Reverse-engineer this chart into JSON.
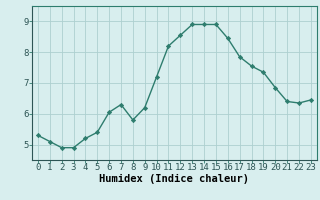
{
  "x": [
    0,
    1,
    2,
    3,
    4,
    5,
    6,
    7,
    8,
    9,
    10,
    11,
    12,
    13,
    14,
    15,
    16,
    17,
    18,
    19,
    20,
    21,
    22,
    23
  ],
  "y": [
    5.3,
    5.1,
    4.9,
    4.9,
    5.2,
    5.4,
    6.05,
    6.3,
    5.8,
    6.2,
    7.2,
    8.2,
    8.55,
    8.9,
    8.9,
    8.9,
    8.45,
    7.85,
    7.55,
    7.35,
    6.85,
    6.4,
    6.35,
    6.45
  ],
  "line_color": "#2e7d6e",
  "marker": "D",
  "marker_size": 2.2,
  "bg_color": "#d8eeee",
  "grid_color": "#add0d0",
  "xlabel": "Humidex (Indice chaleur)",
  "xlim": [
    -0.5,
    23.5
  ],
  "ylim": [
    4.5,
    9.5
  ],
  "yticks": [
    5,
    6,
    7,
    8,
    9
  ],
  "xticks": [
    0,
    1,
    2,
    3,
    4,
    5,
    6,
    7,
    8,
    9,
    10,
    11,
    12,
    13,
    14,
    15,
    16,
    17,
    18,
    19,
    20,
    21,
    22,
    23
  ],
  "linewidth": 1.0,
  "xlabel_fontsize": 7.5,
  "tick_fontsize": 6.5,
  "spine_color": "#2e7d6e",
  "bottom_color": "#2e5555"
}
